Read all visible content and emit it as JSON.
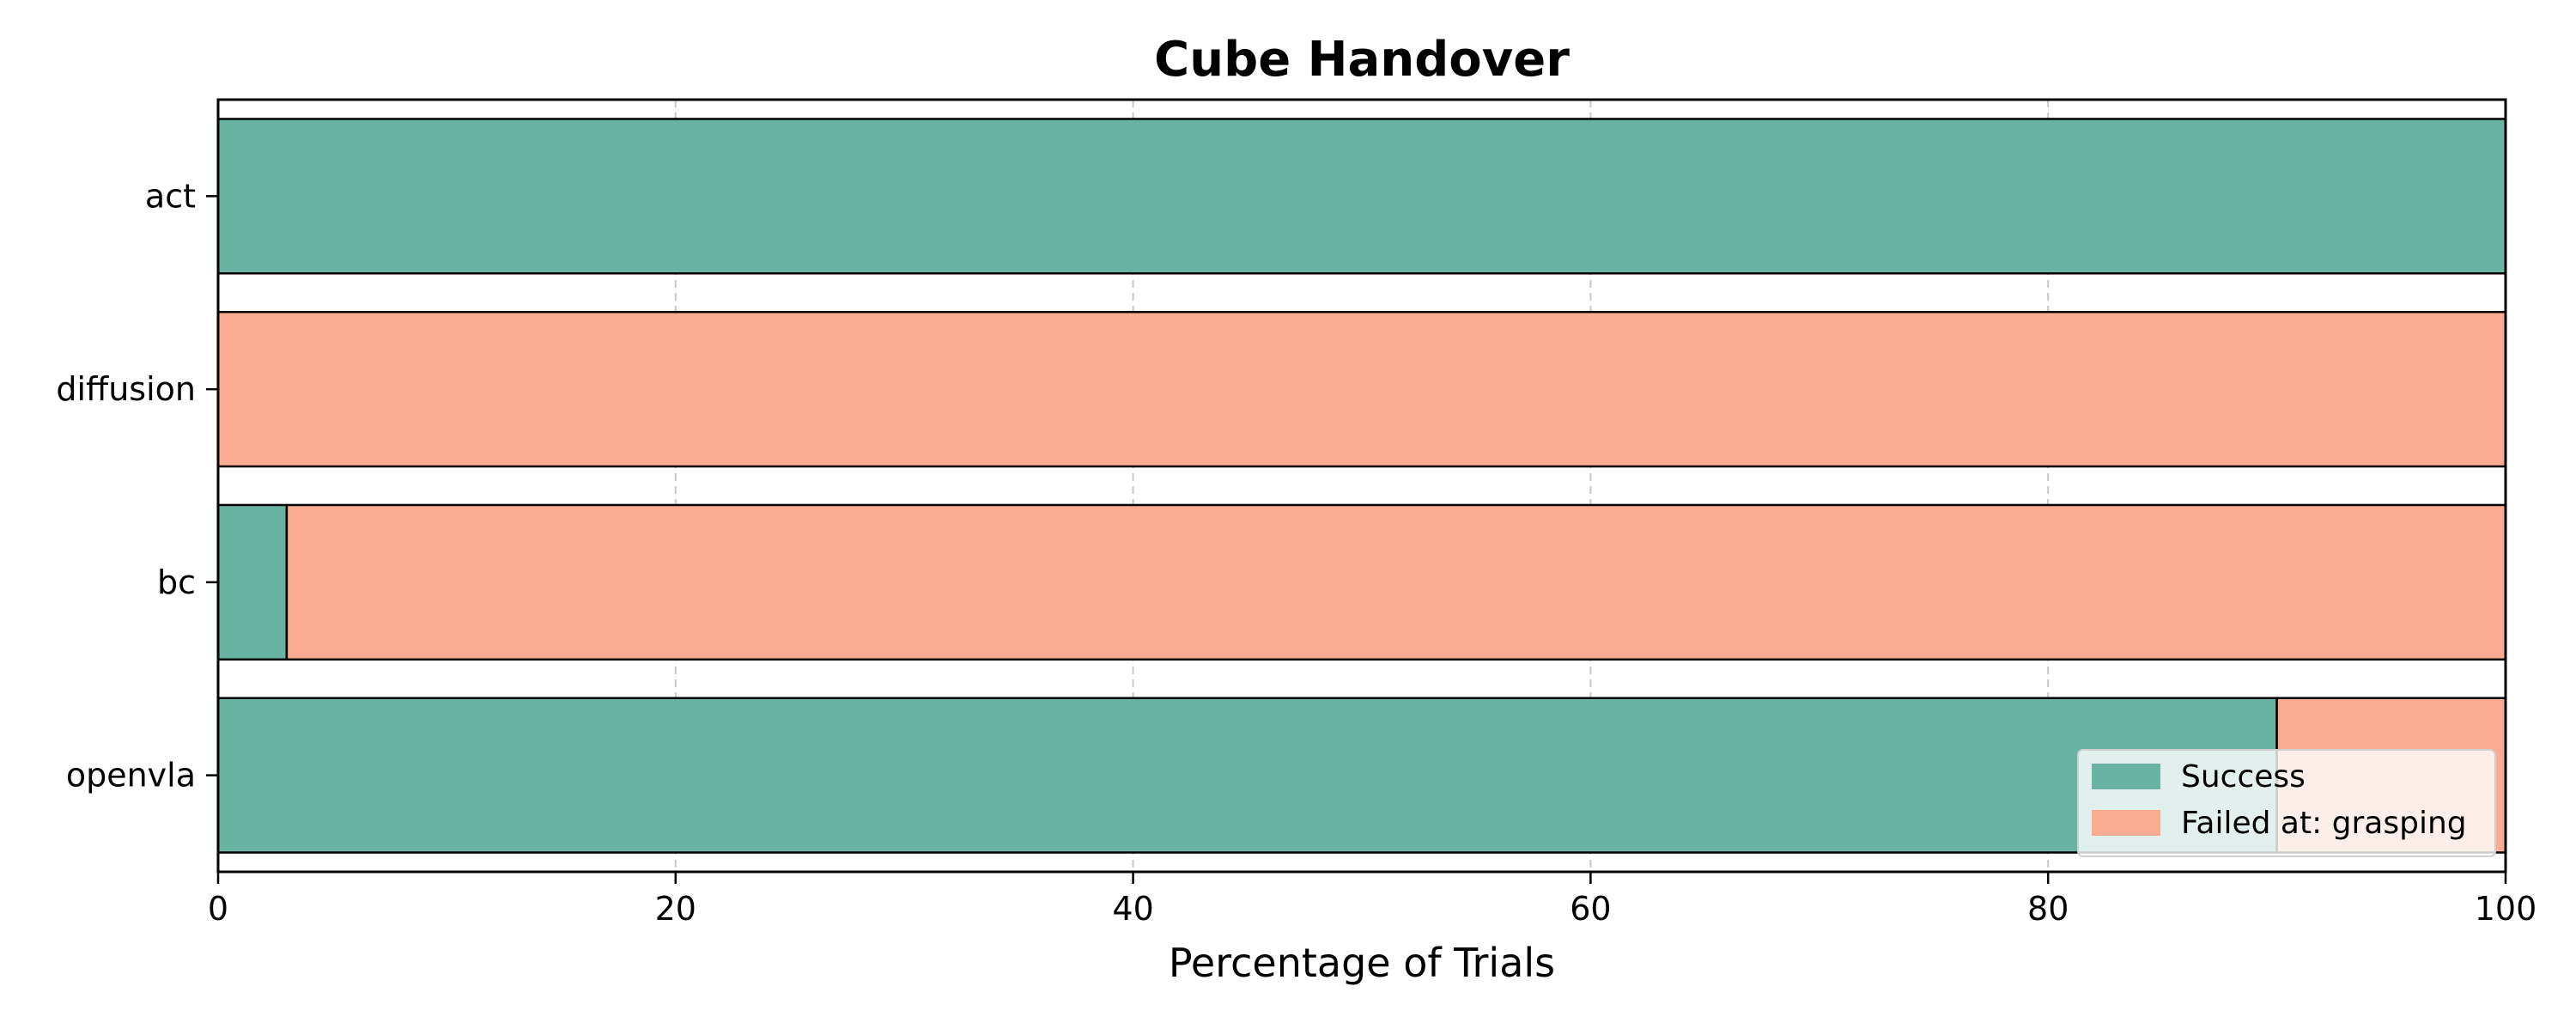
{
  "chart_data": {
    "type": "bar",
    "orientation": "horizontal",
    "stacked": true,
    "title": "Cube Handover",
    "xlabel": "Percentage of Trials",
    "ylabel": "",
    "xlim": [
      0,
      100
    ],
    "xticks": [
      "0",
      "20",
      "40",
      "60",
      "80",
      "100"
    ],
    "categories": [
      "act",
      "diffusion",
      "bc",
      "openvla"
    ],
    "series": [
      {
        "name": "Success",
        "color": "#69b3a2",
        "values": [
          100,
          0,
          3,
          90
        ]
      },
      {
        "name": "Failed at: grasping",
        "color": "#fbab91",
        "values": [
          0,
          100,
          97,
          10
        ]
      }
    ],
    "grid": "x-dashed",
    "legend_position": "lower-right"
  }
}
